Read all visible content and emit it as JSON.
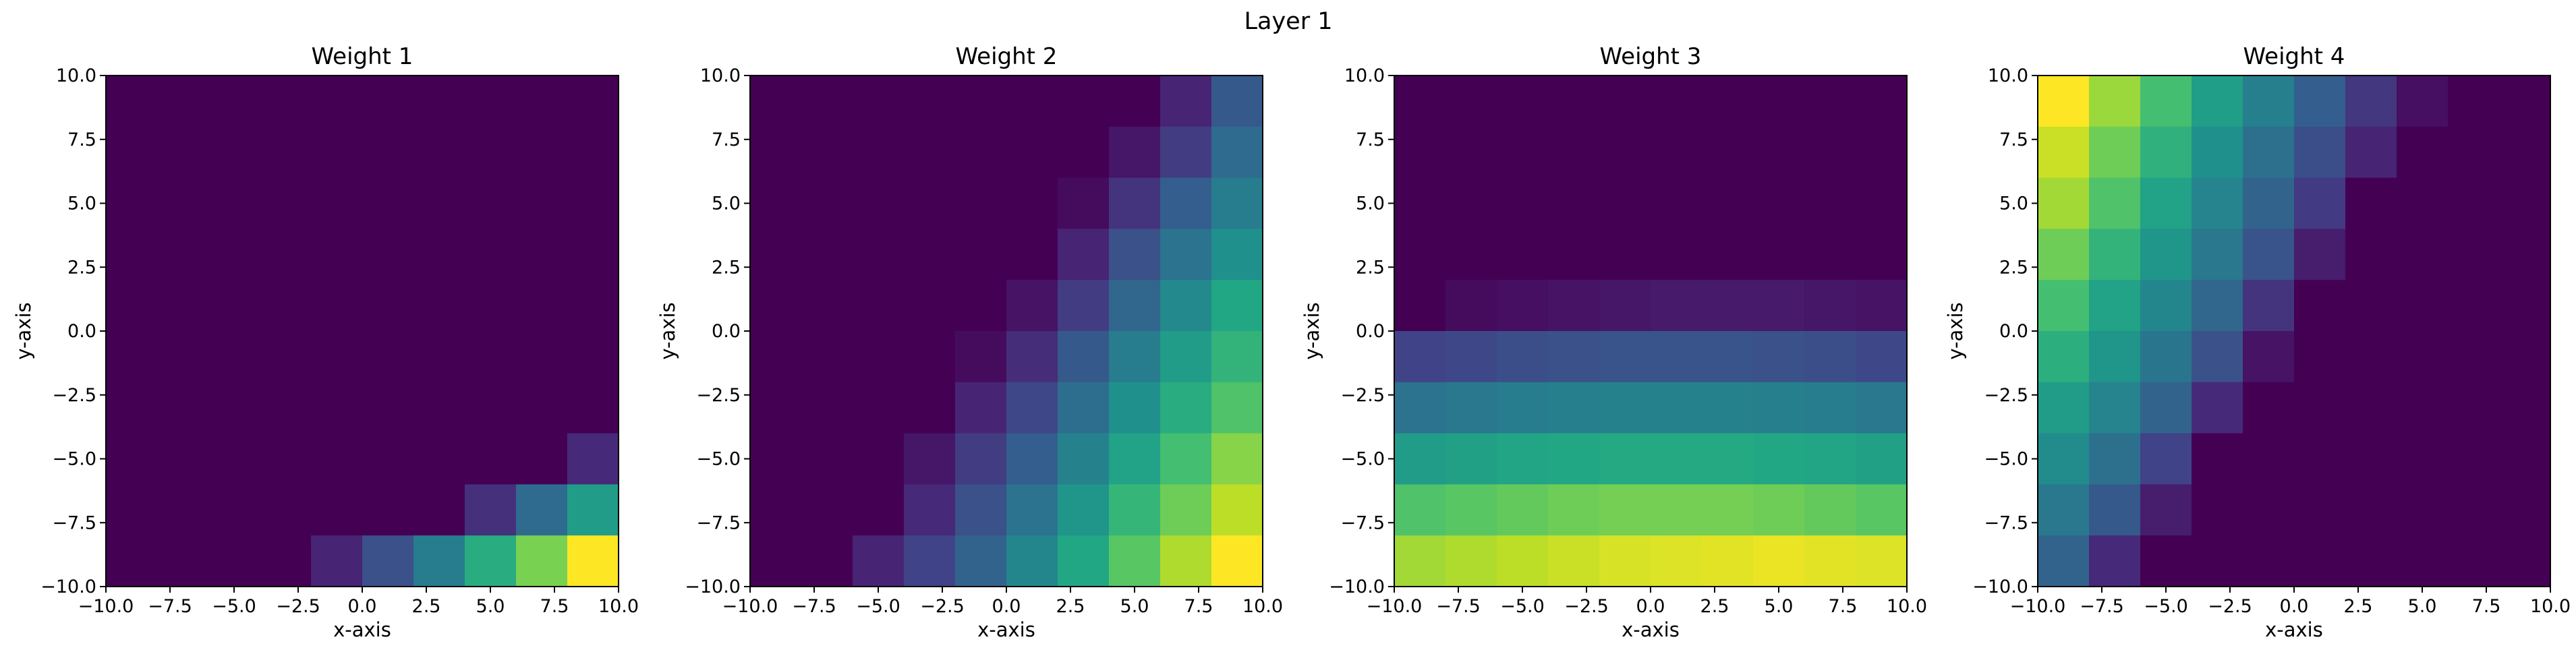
{
  "figure": {
    "title": "Layer 1"
  },
  "colors": {
    "background": "#ffffff",
    "axes": "#000000",
    "colormap": "viridis"
  },
  "chart_data": [
    {
      "type": "heatmap",
      "title": "Weight 1",
      "xlabel": "x-axis",
      "ylabel": "y-axis",
      "xlim": [
        -10,
        10
      ],
      "ylim": [
        -10,
        10
      ],
      "xticks": [
        "−10.0",
        "−7.5",
        "−5.0",
        "−2.5",
        "0.0",
        "2.5",
        "5.0",
        "7.5",
        "10.0"
      ],
      "yticks": [
        "−10.0",
        "−7.5",
        "−5.0",
        "−2.5",
        "0.0",
        "2.5",
        "5.0",
        "7.5",
        "10.0"
      ],
      "grid": false,
      "colormap": "viridis",
      "x_edges": [
        -10,
        -8,
        -6,
        -4,
        -2,
        0,
        2,
        4,
        6,
        8,
        10
      ],
      "y_edges": [
        -10,
        -8,
        -6,
        -4,
        -2,
        0,
        2,
        4,
        6,
        8,
        10
      ],
      "values_top_to_bottom": [
        [
          0,
          0,
          0,
          0,
          0,
          0,
          0,
          0,
          0,
          0
        ],
        [
          0,
          0,
          0,
          0,
          0,
          0,
          0,
          0,
          0,
          0
        ],
        [
          0,
          0,
          0,
          0,
          0,
          0,
          0,
          0,
          0,
          0
        ],
        [
          0,
          0,
          0,
          0,
          0,
          0,
          0,
          0,
          0,
          0
        ],
        [
          0,
          0,
          0,
          0,
          0,
          0,
          0,
          0,
          0,
          0
        ],
        [
          0,
          0,
          0,
          0,
          0,
          0,
          0,
          0,
          0,
          0
        ],
        [
          0,
          0,
          0,
          0,
          0,
          0,
          0,
          0,
          0,
          0
        ],
        [
          0,
          0,
          0,
          0,
          0,
          0,
          0,
          0,
          0,
          0.12
        ],
        [
          0,
          0,
          0,
          0,
          0,
          0,
          0,
          0.14,
          0.35,
          0.55
        ],
        [
          0,
          0,
          0,
          0,
          0.1,
          0.25,
          0.42,
          0.62,
          0.8,
          1.0
        ]
      ]
    },
    {
      "type": "heatmap",
      "title": "Weight 2",
      "xlabel": "x-axis",
      "ylabel": "y-axis",
      "xlim": [
        -10,
        10
      ],
      "ylim": [
        -10,
        10
      ],
      "xticks": [
        "−10.0",
        "−7.5",
        "−5.0",
        "−2.5",
        "0.0",
        "2.5",
        "5.0",
        "7.5",
        "10.0"
      ],
      "yticks": [
        "−10.0",
        "−7.5",
        "−5.0",
        "−2.5",
        "0.0",
        "2.5",
        "5.0",
        "7.5",
        "10.0"
      ],
      "grid": false,
      "colormap": "viridis",
      "x_edges": [
        -10,
        -8,
        -6,
        -4,
        -2,
        0,
        2,
        4,
        6,
        8,
        10
      ],
      "y_edges": [
        -10,
        -8,
        -6,
        -4,
        -2,
        0,
        2,
        4,
        6,
        8,
        10
      ],
      "values_top_to_bottom": [
        [
          0,
          0,
          0,
          0,
          0,
          0,
          0,
          0,
          0.1,
          0.28
        ],
        [
          0,
          0,
          0,
          0,
          0,
          0,
          0,
          0.06,
          0.18,
          0.35
        ],
        [
          0,
          0,
          0,
          0,
          0,
          0,
          0.03,
          0.15,
          0.3,
          0.42
        ],
        [
          0,
          0,
          0,
          0,
          0,
          0,
          0.1,
          0.25,
          0.38,
          0.5
        ],
        [
          0,
          0,
          0,
          0,
          0,
          0.05,
          0.18,
          0.33,
          0.47,
          0.6
        ],
        [
          0,
          0,
          0,
          0,
          0.03,
          0.13,
          0.28,
          0.42,
          0.55,
          0.65
        ],
        [
          0,
          0,
          0,
          0,
          0.1,
          0.22,
          0.36,
          0.5,
          0.62,
          0.72
        ],
        [
          0,
          0,
          0,
          0.06,
          0.18,
          0.3,
          0.44,
          0.58,
          0.7,
          0.82
        ],
        [
          0,
          0,
          0,
          0.12,
          0.25,
          0.38,
          0.52,
          0.66,
          0.78,
          0.9
        ],
        [
          0,
          0,
          0.1,
          0.2,
          0.32,
          0.46,
          0.6,
          0.74,
          0.88,
          1.0
        ]
      ]
    },
    {
      "type": "heatmap",
      "title": "Weight 3",
      "xlabel": "x-axis",
      "ylabel": "y-axis",
      "xlim": [
        -10,
        10
      ],
      "ylim": [
        -10,
        10
      ],
      "xticks": [
        "−10.0",
        "−7.5",
        "−5.0",
        "−2.5",
        "0.0",
        "2.5",
        "5.0",
        "7.5",
        "10.0"
      ],
      "yticks": [
        "−10.0",
        "−7.5",
        "−5.0",
        "−2.5",
        "0.0",
        "2.5",
        "5.0",
        "7.5",
        "10.0"
      ],
      "grid": false,
      "colormap": "viridis",
      "x_edges": [
        -10,
        -8,
        -6,
        -4,
        -2,
        0,
        2,
        4,
        6,
        8,
        10
      ],
      "y_edges": [
        -10,
        -8,
        -6,
        -4,
        -2,
        0,
        2,
        4,
        6,
        8,
        10
      ],
      "values_top_to_bottom": [
        [
          0,
          0,
          0,
          0,
          0,
          0,
          0,
          0,
          0,
          0
        ],
        [
          0,
          0,
          0,
          0,
          0,
          0,
          0,
          0,
          0,
          0
        ],
        [
          0,
          0,
          0,
          0,
          0,
          0,
          0,
          0,
          0,
          0
        ],
        [
          0,
          0,
          0,
          0,
          0,
          0,
          0,
          0,
          0,
          0
        ],
        [
          0,
          0.03,
          0.04,
          0.05,
          0.06,
          0.07,
          0.07,
          0.07,
          0.06,
          0.05
        ],
        [
          0.2,
          0.22,
          0.24,
          0.25,
          0.26,
          0.26,
          0.26,
          0.25,
          0.24,
          0.22
        ],
        [
          0.38,
          0.4,
          0.42,
          0.43,
          0.44,
          0.44,
          0.44,
          0.43,
          0.42,
          0.4
        ],
        [
          0.55,
          0.57,
          0.59,
          0.6,
          0.61,
          0.61,
          0.61,
          0.6,
          0.59,
          0.57
        ],
        [
          0.72,
          0.74,
          0.76,
          0.78,
          0.79,
          0.79,
          0.79,
          0.78,
          0.76,
          0.74
        ],
        [
          0.86,
          0.88,
          0.9,
          0.92,
          0.94,
          0.95,
          0.96,
          0.97,
          0.96,
          0.95
        ]
      ]
    },
    {
      "type": "heatmap",
      "title": "Weight 4",
      "xlabel": "x-axis",
      "ylabel": "y-axis",
      "xlim": [
        -10,
        10
      ],
      "ylim": [
        -10,
        10
      ],
      "xticks": [
        "−10.0",
        "−7.5",
        "−5.0",
        "−2.5",
        "0.0",
        "2.5",
        "5.0",
        "7.5",
        "10.0"
      ],
      "yticks": [
        "−10.0",
        "−7.5",
        "−5.0",
        "−2.5",
        "0.0",
        "2.5",
        "5.0",
        "7.5",
        "10.0"
      ],
      "grid": false,
      "colormap": "viridis",
      "x_edges": [
        -10,
        -8,
        -6,
        -4,
        -2,
        0,
        2,
        4,
        6,
        8,
        10
      ],
      "y_edges": [
        -10,
        -8,
        -6,
        -4,
        -2,
        0,
        2,
        4,
        6,
        8,
        10
      ],
      "values_top_to_bottom": [
        [
          1.0,
          0.85,
          0.7,
          0.56,
          0.43,
          0.3,
          0.16,
          0.04,
          0,
          0
        ],
        [
          0.92,
          0.78,
          0.64,
          0.5,
          0.37,
          0.24,
          0.1,
          0,
          0,
          0
        ],
        [
          0.86,
          0.72,
          0.58,
          0.45,
          0.32,
          0.17,
          0,
          0,
          0,
          0
        ],
        [
          0.78,
          0.65,
          0.52,
          0.4,
          0.26,
          0.08,
          0,
          0,
          0,
          0
        ],
        [
          0.7,
          0.58,
          0.46,
          0.33,
          0.15,
          0,
          0,
          0,
          0,
          0
        ],
        [
          0.63,
          0.52,
          0.39,
          0.25,
          0.05,
          0,
          0,
          0,
          0,
          0
        ],
        [
          0.55,
          0.45,
          0.32,
          0.12,
          0,
          0,
          0,
          0,
          0,
          0
        ],
        [
          0.48,
          0.37,
          0.2,
          0,
          0,
          0,
          0,
          0,
          0,
          0
        ],
        [
          0.4,
          0.28,
          0.08,
          0,
          0,
          0,
          0,
          0,
          0,
          0
        ],
        [
          0.32,
          0.12,
          0,
          0,
          0,
          0,
          0,
          0,
          0,
          0
        ]
      ]
    }
  ]
}
